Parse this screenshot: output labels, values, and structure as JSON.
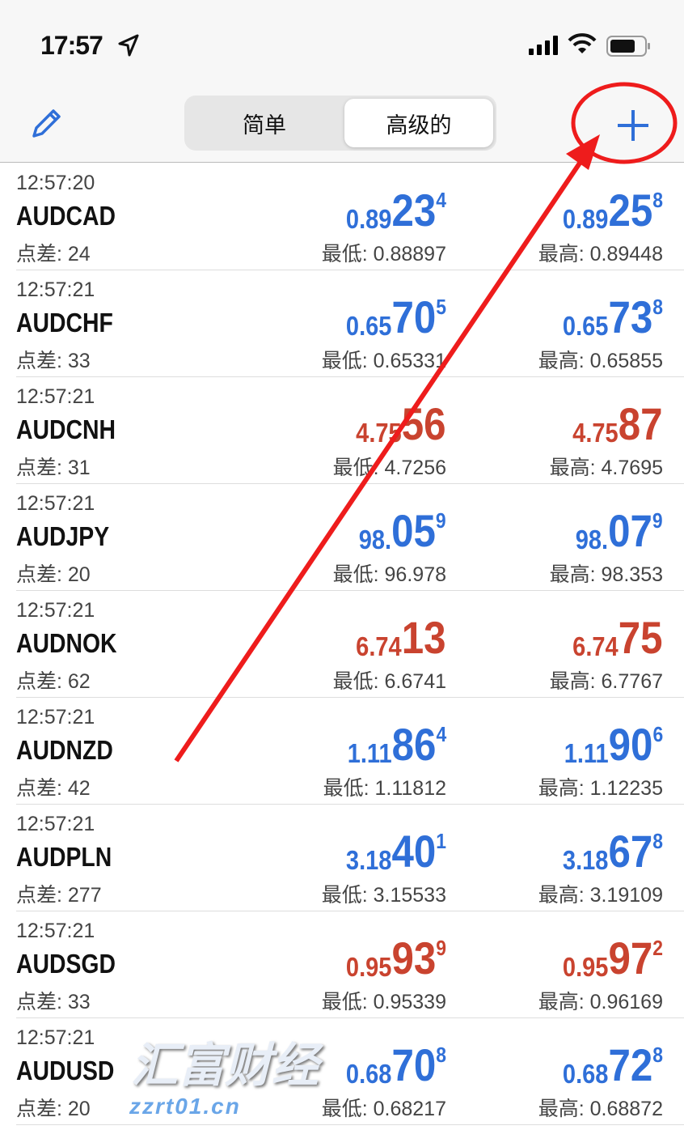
{
  "status_bar": {
    "time": "17:57",
    "icons": [
      "location-arrow-icon",
      "signal-icon",
      "wifi-icon",
      "battery-icon"
    ]
  },
  "nav": {
    "edit_icon": "pencil-icon",
    "segments": [
      "简单",
      "高级的"
    ],
    "selected_segment": "高级的",
    "add_icon": "plus-icon"
  },
  "colors": {
    "up": "#2f6fd8",
    "down": "#c9432f"
  },
  "quotes": [
    {
      "time": "12:57:20",
      "symbol": "AUDCAD",
      "spread": "点差: 24",
      "color": "up",
      "bid": [
        "0.89",
        "23",
        "4"
      ],
      "ask": [
        "0.89",
        "25",
        "8"
      ],
      "low": "最低: 0.88897",
      "high": "最高: 0.89448"
    },
    {
      "time": "12:57:21",
      "symbol": "AUDCHF",
      "spread": "点差: 33",
      "color": "up",
      "bid": [
        "0.65",
        "70",
        "5"
      ],
      "ask": [
        "0.65",
        "73",
        "8"
      ],
      "low": "最低: 0.65331",
      "high": "最高: 0.65855"
    },
    {
      "time": "12:57:21",
      "symbol": "AUDCNH",
      "spread": "点差: 31",
      "color": "down",
      "bid": [
        "4.75",
        "56",
        ""
      ],
      "ask": [
        "4.75",
        "87",
        ""
      ],
      "low": "最低: 4.7256",
      "high": "最高: 4.7695"
    },
    {
      "time": "12:57:21",
      "symbol": "AUDJPY",
      "spread": "点差: 20",
      "color": "up",
      "bid": [
        "98.",
        "05",
        "9"
      ],
      "ask": [
        "98.",
        "07",
        "9"
      ],
      "low": "最低: 96.978",
      "high": "最高: 98.353"
    },
    {
      "time": "12:57:21",
      "symbol": "AUDNOK",
      "spread": "点差: 62",
      "color": "down",
      "bid": [
        "6.74",
        "13",
        ""
      ],
      "ask": [
        "6.74",
        "75",
        ""
      ],
      "low": "最低: 6.6741",
      "high": "最高: 6.7767"
    },
    {
      "time": "12:57:21",
      "symbol": "AUDNZD",
      "spread": "点差: 42",
      "color": "up",
      "bid": [
        "1.11",
        "86",
        "4"
      ],
      "ask": [
        "1.11",
        "90",
        "6"
      ],
      "low": "最低: 1.11812",
      "high": "最高: 1.12235"
    },
    {
      "time": "12:57:21",
      "symbol": "AUDPLN",
      "spread": "点差: 277",
      "color": "up",
      "bid": [
        "3.18",
        "40",
        "1"
      ],
      "ask": [
        "3.18",
        "67",
        "8"
      ],
      "low": "最低: 3.15533",
      "high": "最高: 3.19109"
    },
    {
      "time": "12:57:21",
      "symbol": "AUDSGD",
      "spread": "点差: 33",
      "color": "down",
      "bid": [
        "0.95",
        "93",
        "9"
      ],
      "ask": [
        "0.95",
        "97",
        "2"
      ],
      "low": "最低: 0.95339",
      "high": "最高: 0.96169"
    },
    {
      "time": "12:57:21",
      "symbol": "AUDUSD",
      "spread": "点差: 20",
      "color": "up",
      "bid": [
        "0.68",
        "70",
        "8"
      ],
      "ask": [
        "0.68",
        "72",
        "8"
      ],
      "low": "最低: 0.68217",
      "high": "最高: 0.68872"
    }
  ],
  "watermark": {
    "text": "汇富财经",
    "url": "zzrt01.cn"
  }
}
